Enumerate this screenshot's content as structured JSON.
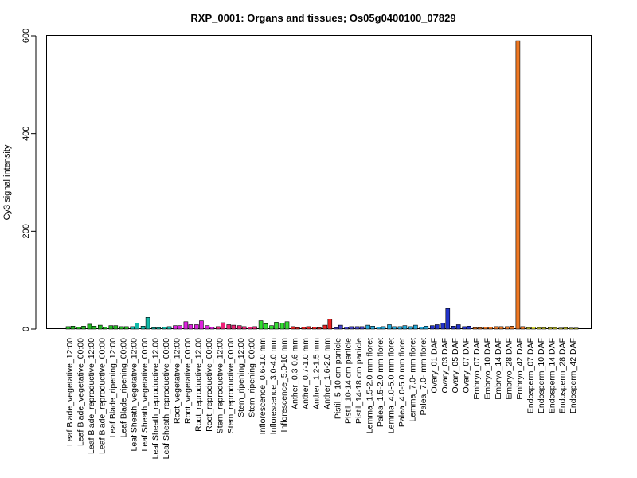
{
  "chart_data": {
    "type": "bar",
    "title": "RXP_0001: Organs and tissues; Os05g0400100_07829",
    "xlabel": "",
    "ylabel": "Cy3 signal intensity",
    "ylim": [
      0,
      600
    ],
    "yticks": [
      0,
      200,
      400,
      600
    ],
    "grid": false,
    "legend": "none",
    "categories": [
      "Leaf Blade_vegetative_12:00",
      "Leaf Blade_vegetative_00:00",
      "Leaf Blade_reproductive_12:00",
      "Leaf Blade_reproductive_00:00",
      "Leaf Blade_ripening_12:00",
      "Leaf Blade_ripening_00:00",
      "Leaf Sheath_vegetative_12:00",
      "Leaf Sheath_vegetative_00:00",
      "Leaf Sheath_reproductive_12:00",
      "Leaf Sheath_reproductive_00:00",
      "Root_vegetative_12:00",
      "Root_vegetative_00:00",
      "Root_reproductive_12:00",
      "Root_reproductive_00:00",
      "Stem_reproductive_12:00",
      "Stem_reproductive_00:00",
      "Stem_ripening_12:00",
      "Stem_ripening_00:00",
      "Inflorescence_0.6-1.0 mm",
      "Inflorescence_3.0-4.0 mm",
      "Inflorescence_5.0-10 mm",
      "Anther_0.3-0.6 mm",
      "Anther_0.7-1.0 mm",
      "Anther_1.2-1.5 mm",
      "Anther_1.6-2.0 mm",
      "Pistil_5-10 cm panicle",
      "Pistil_10-14 cm panicle",
      "Pistil_14-18 cm panicle",
      "Lemma_1.5-2.0 mm floret",
      "Palea_1.5-2.0 mm floret",
      "Lemma_4.0-5.0 mm floret",
      "Palea_4.0-5.0 mm floret",
      "Lemma_7.0- mm floret",
      "Palea_7.0- mm floret",
      "Ovary_01 DAF",
      "Ovary_03 DAF",
      "Ovary_05 DAF",
      "Ovary_07 DAF",
      "Embryo_07 DAF",
      "Embryo_10 DAF",
      "Embryo_14 DAF",
      "Embryo_28 DAF",
      "Embryo_42 DAF",
      "Endosperm_07 DAF",
      "Endosperm_10 DAF",
      "Endosperm_14 DAF",
      "Endosperm_28 DAF",
      "Endosperm_42 DAF"
    ],
    "bar_groups": [
      {
        "color": "#22bb22",
        "values": [
          5,
          6
        ]
      },
      {
        "color": "#22bb22",
        "values": [
          4,
          6
        ]
      },
      {
        "color": "#22bb22",
        "values": [
          10,
          6
        ]
      },
      {
        "color": "#22bb22",
        "values": [
          8,
          4
        ]
      },
      {
        "color": "#22bb22",
        "values": [
          7,
          7
        ]
      },
      {
        "color": "#22bb22",
        "values": [
          5,
          5
        ]
      },
      {
        "color": "#11bbaa",
        "values": [
          5,
          12
        ]
      },
      {
        "color": "#11bbaa",
        "values": [
          6,
          24
        ]
      },
      {
        "color": "#11bbaa",
        "values": [
          3,
          3
        ]
      },
      {
        "color": "#11bbaa",
        "values": [
          4,
          5
        ]
      },
      {
        "color": "#dd22dd",
        "values": [
          7,
          7
        ]
      },
      {
        "color": "#dd22dd",
        "values": [
          15,
          9
        ]
      },
      {
        "color": "#dd22dd",
        "values": [
          9,
          17
        ]
      },
      {
        "color": "#dd22dd",
        "values": [
          7,
          4
        ]
      },
      {
        "color": "#ee2277",
        "values": [
          5,
          13
        ]
      },
      {
        "color": "#ee2277",
        "values": [
          9,
          8
        ]
      },
      {
        "color": "#ee2277",
        "values": [
          7,
          5
        ]
      },
      {
        "color": "#ee2277",
        "values": [
          4,
          5
        ]
      },
      {
        "color": "#33dd33",
        "values": [
          17,
          11
        ]
      },
      {
        "color": "#33dd33",
        "values": [
          7,
          14
        ]
      },
      {
        "color": "#33dd33",
        "values": [
          12,
          15
        ]
      },
      {
        "color": "#ee2222",
        "values": [
          5,
          3
        ]
      },
      {
        "color": "#ee2222",
        "values": [
          4,
          5
        ]
      },
      {
        "color": "#ee2222",
        "values": [
          4,
          3
        ]
      },
      {
        "color": "#ee2222",
        "values": [
          8,
          20
        ]
      },
      {
        "color": "#4444cc",
        "values": [
          3,
          8
        ]
      },
      {
        "color": "#4444cc",
        "values": [
          4,
          5
        ]
      },
      {
        "color": "#4444cc",
        "values": [
          5,
          5
        ]
      },
      {
        "color": "#22aadd",
        "values": [
          8,
          6
        ]
      },
      {
        "color": "#22aadd",
        "values": [
          4,
          5
        ]
      },
      {
        "color": "#22aadd",
        "values": [
          9,
          5
        ]
      },
      {
        "color": "#22aadd",
        "values": [
          5,
          7
        ]
      },
      {
        "color": "#22aadd",
        "values": [
          5,
          8
        ]
      },
      {
        "color": "#22aadd",
        "values": [
          4,
          6
        ]
      },
      {
        "color": "#2233cc",
        "values": [
          7,
          9
        ]
      },
      {
        "color": "#2233cc",
        "values": [
          12,
          42
        ]
      },
      {
        "color": "#2233cc",
        "values": [
          6,
          9
        ]
      },
      {
        "color": "#2233cc",
        "values": [
          5,
          6
        ]
      },
      {
        "color": "#ee7722",
        "values": [
          3,
          3
        ]
      },
      {
        "color": "#ee7722",
        "values": [
          4,
          4
        ]
      },
      {
        "color": "#ee7722",
        "values": [
          5,
          5
        ]
      },
      {
        "color": "#ee7722",
        "values": [
          5,
          6
        ]
      },
      {
        "color": "#ee7722",
        "values": [
          590,
          5
        ]
      },
      {
        "color": "#dddd33",
        "values": [
          3,
          4
        ]
      },
      {
        "color": "#dddd33",
        "values": [
          3,
          3
        ]
      },
      {
        "color": "#dddd33",
        "values": [
          3,
          3
        ]
      },
      {
        "color": "#dddd33",
        "values": [
          2,
          3
        ]
      },
      {
        "color": "#dddd33",
        "values": [
          2,
          2
        ]
      }
    ]
  }
}
